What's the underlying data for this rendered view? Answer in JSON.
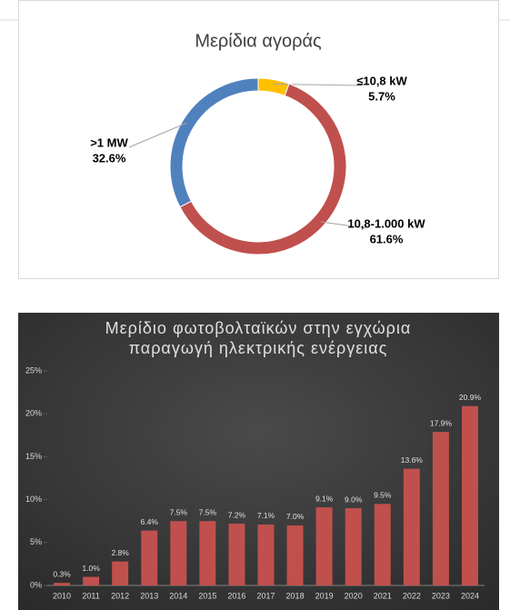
{
  "chart_data": [
    {
      "type": "pie",
      "title": "Μερίδια αγοράς",
      "categories": [
        "≤10,8 kW",
        "10,8-1.000 kW",
        ">1 MW"
      ],
      "values": [
        5.7,
        61.6,
        32.6
      ],
      "value_labels": [
        "5.7%",
        "61.6%",
        "32.6%"
      ],
      "colors": [
        "#ffc000",
        "#c0504d",
        "#4f81bd"
      ],
      "donut": true
    },
    {
      "type": "bar",
      "title": [
        "Μερίδιο φωτοβολταϊκών στην εγχώρια",
        "παραγωγή ηλεκτρικής ενέργειας"
      ],
      "categories": [
        "2010",
        "2011",
        "2012",
        "2013",
        "2014",
        "2015",
        "2016",
        "2017",
        "2018",
        "2019",
        "2020",
        "2021",
        "2022",
        "2023",
        "2024"
      ],
      "values": [
        0.3,
        1.0,
        2.8,
        6.4,
        7.5,
        7.5,
        7.2,
        7.1,
        7.0,
        9.1,
        9.0,
        9.5,
        13.6,
        17.9,
        20.9
      ],
      "value_labels": [
        "0.3%",
        "1.0%",
        "2.8%",
        "6.4%",
        "7.5%",
        "7.5%",
        "7.2%",
        "7.1%",
        "7.0%",
        "9.1%",
        "9.0%",
        "9.5%",
        "13.6%",
        "17.9%",
        "20.9%"
      ],
      "color": "#c0504d",
      "ylim": [
        0,
        25
      ],
      "yticks": [
        {
          "value": 0,
          "label": "0%"
        },
        {
          "value": 5,
          "label": "5%"
        },
        {
          "value": 10,
          "label": "10%"
        },
        {
          "value": 15,
          "label": "15%"
        },
        {
          "value": 20,
          "label": "20%"
        },
        {
          "value": 25,
          "label": "25%"
        }
      ],
      "grid": false
    }
  ]
}
